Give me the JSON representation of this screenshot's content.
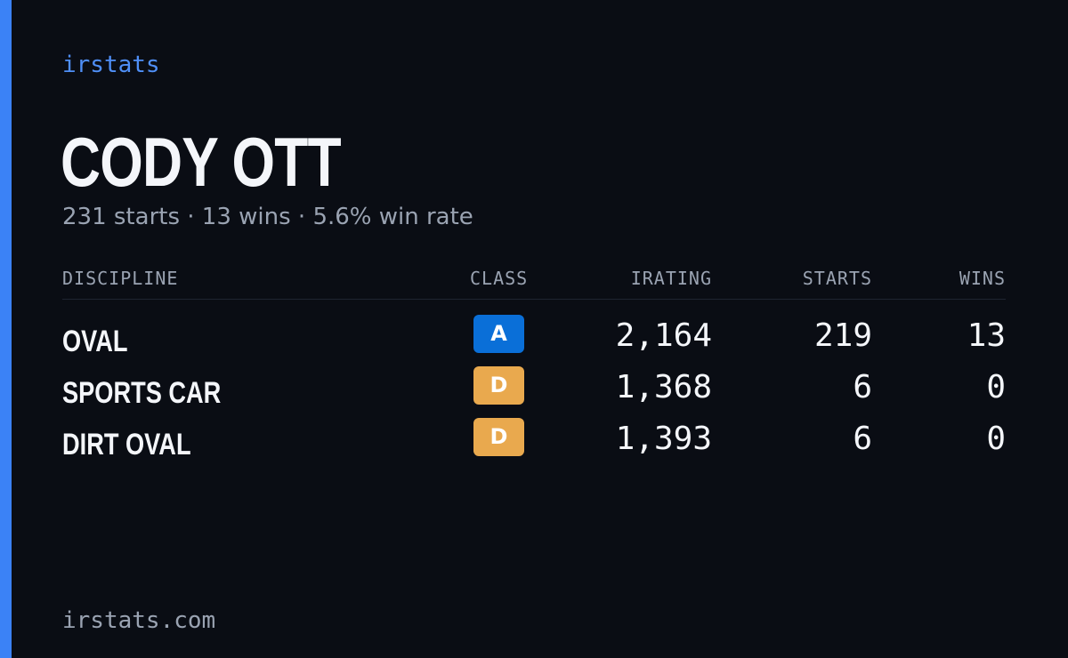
{
  "brand": "irstats",
  "driver": {
    "name": "CODY OTT",
    "summary": "231 starts · 13 wins · 5.6% win rate"
  },
  "table": {
    "headers": {
      "discipline": "DISCIPLINE",
      "class": "CLASS",
      "irating": "IRATING",
      "starts": "STARTS",
      "wins": "WINS"
    },
    "rows": [
      {
        "discipline": "OVAL",
        "class": "A",
        "class_color": "#0a6fd8",
        "irating": "2,164",
        "starts": "219",
        "wins": "13"
      },
      {
        "discipline": "SPORTS CAR",
        "class": "D",
        "class_color": "#e9a94e",
        "irating": "1,368",
        "starts": "6",
        "wins": "0"
      },
      {
        "discipline": "DIRT OVAL",
        "class": "D",
        "class_color": "#e9a94e",
        "irating": "1,393",
        "starts": "6",
        "wins": "0"
      }
    ]
  },
  "footer": "irstats.com",
  "colors": {
    "accent": "#3b82f6",
    "background": "#0a0d14"
  }
}
